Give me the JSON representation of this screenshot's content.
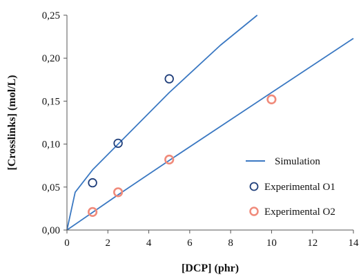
{
  "chart_data": {
    "type": "scatter",
    "xlabel": "[DCP] (phr)",
    "ylabel": "[Crosslinks] (mol/L)",
    "xlim": [
      0,
      14
    ],
    "ylim": [
      0,
      0.25
    ],
    "x_ticks": [
      0,
      2,
      4,
      6,
      8,
      10,
      12,
      14
    ],
    "y_ticks": [
      0,
      0.05,
      0.1,
      0.15,
      0.2,
      0.25
    ],
    "x_tick_labels": [
      "0",
      "2",
      "4",
      "6",
      "8",
      "10",
      "12",
      "14"
    ],
    "y_tick_labels": [
      "0,00",
      "0,05",
      "0,10",
      "0,15",
      "0,20",
      "0,25"
    ],
    "grid": false,
    "legend_position": "bottom-right",
    "series": [
      {
        "name": "Simulation",
        "kind": "line",
        "color": "#3a78c2",
        "curves": [
          {
            "x": [
              0,
              0.4,
              1.25,
              2.5,
              5,
              7.5,
              9.3
            ],
            "y": [
              0,
              0.044,
              0.07,
              0.1,
              0.16,
              0.215,
              0.25
            ]
          },
          {
            "x": [
              0,
              2.5,
              5,
              10,
              14
            ],
            "y": [
              0,
              0.041,
              0.081,
              0.16,
              0.223
            ]
          }
        ]
      },
      {
        "name": "Experimental O1",
        "kind": "scatter",
        "marker": "circle",
        "color": "#1f3e7a",
        "x": [
          1.25,
          2.5,
          5
        ],
        "y": [
          0.055,
          0.101,
          0.176
        ]
      },
      {
        "name": "Experimental O2",
        "kind": "scatter",
        "marker": "circle",
        "color": "#f08a7a",
        "x": [
          1.25,
          2.5,
          5,
          10
        ],
        "y": [
          0.021,
          0.044,
          0.082,
          0.152
        ]
      }
    ]
  }
}
